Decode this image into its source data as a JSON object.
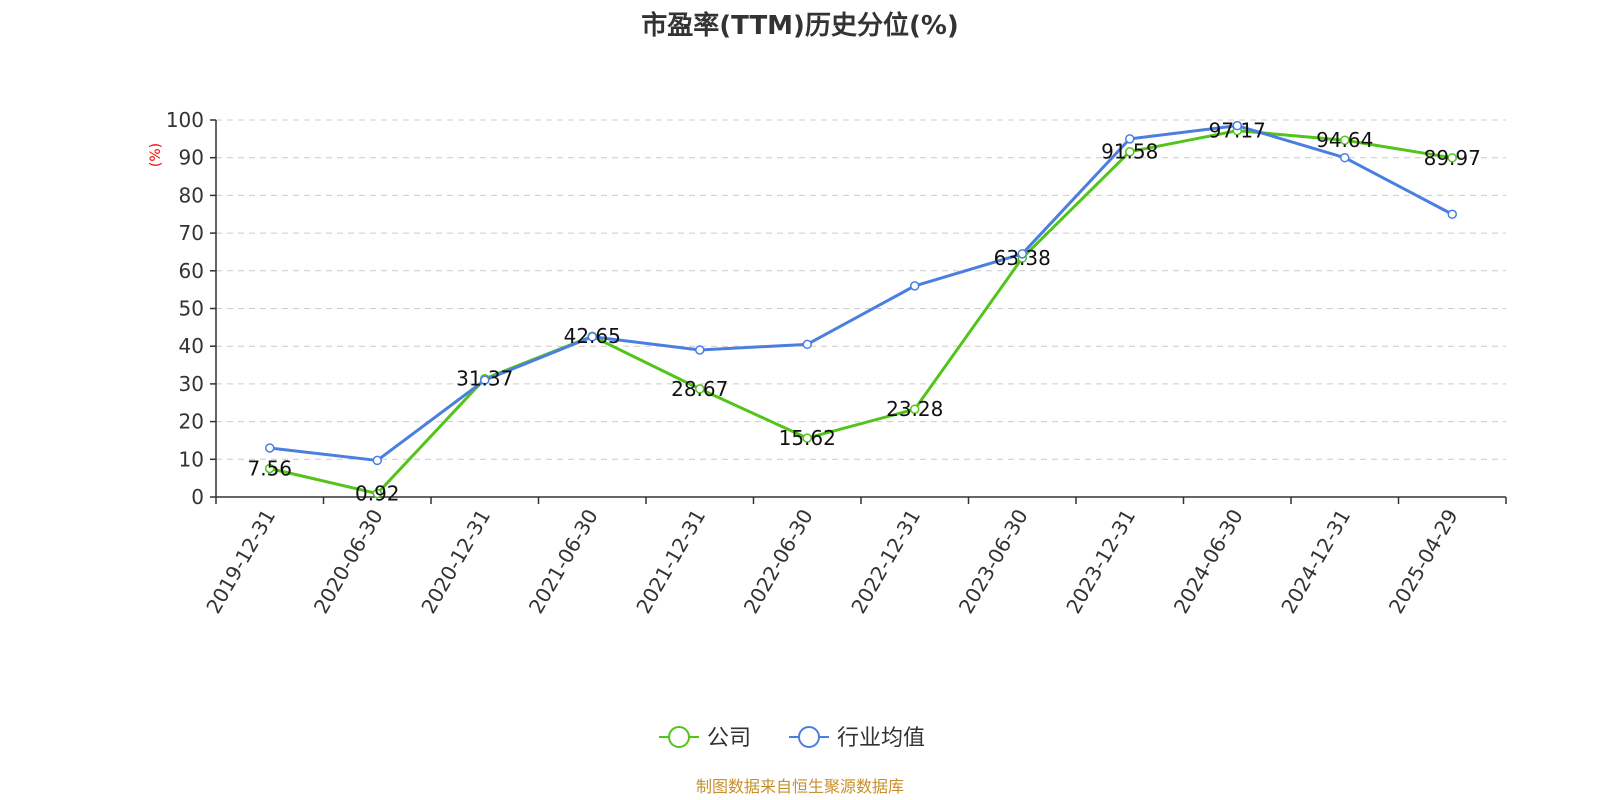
{
  "chart_data": {
    "type": "line",
    "title": "市盈率(TTM)历史分位(%)",
    "ylabel": "(%)",
    "xlabel": "",
    "ylim": [
      0,
      100
    ],
    "yticks": [
      0,
      10,
      20,
      30,
      40,
      50,
      60,
      70,
      80,
      90,
      100
    ],
    "categories": [
      "2019-12-31",
      "2020-06-30",
      "2020-12-31",
      "2021-06-30",
      "2021-12-31",
      "2022-06-30",
      "2022-12-31",
      "2023-06-30",
      "2023-12-31",
      "2024-06-30",
      "2024-12-31",
      "2025-04-29"
    ],
    "grid": true,
    "legend_position": "bottom-center",
    "series": [
      {
        "name": "公司",
        "color": "#52c41a",
        "values": [
          7.56,
          0.92,
          31.37,
          42.65,
          28.67,
          15.62,
          23.28,
          63.38,
          91.58,
          97.17,
          94.64,
          89.97
        ],
        "labels": [
          "7.56",
          "0.92",
          "31.37",
          "42.65",
          "28.67",
          "15.62",
          "23.28",
          "63.38",
          "91.58",
          "97.17",
          "94.64",
          "89.97"
        ]
      },
      {
        "name": "行业均值",
        "color": "#4a7fe0",
        "values": [
          13,
          9.7,
          31,
          42.5,
          39,
          40.5,
          56,
          64.5,
          95,
          98.5,
          90,
          75
        ]
      }
    ]
  },
  "colors": {
    "ylabel": "#ff0000",
    "source": "#c8902a"
  },
  "source_text": "制图数据来自恒生聚源数据库"
}
